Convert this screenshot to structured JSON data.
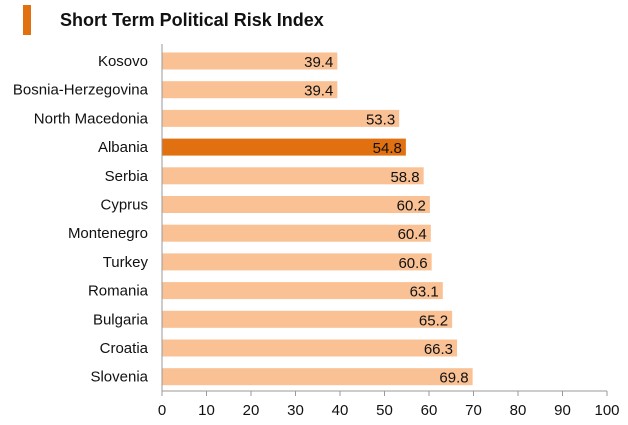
{
  "chart_data": {
    "type": "bar",
    "orientation": "horizontal",
    "title": "Short Term Political Risk Index",
    "categories": [
      "Kosovo",
      "Bosnia-Herzegovina",
      "North Macedonia",
      "Albania",
      "Serbia",
      "Cyprus",
      "Montenegro",
      "Turkey",
      "Romania",
      "Bulgaria",
      "Croatia",
      "Slovenia"
    ],
    "values": [
      39.4,
      39.4,
      53.3,
      54.8,
      58.8,
      60.2,
      60.4,
      60.6,
      63.1,
      65.2,
      66.3,
      69.8
    ],
    "value_labels": [
      "39.4",
      "39.4",
      "53.3",
      "54.8",
      "58.8",
      "60.2",
      "60.4",
      "60.6",
      "63.1",
      "65.2",
      "66.3",
      "69.8"
    ],
    "highlight_category": "Albania",
    "xlim": [
      0,
      100
    ],
    "xticks": [
      "0",
      "10",
      "20",
      "30",
      "40",
      "50",
      "60",
      "70",
      "80",
      "90",
      "100"
    ],
    "xlabel": "",
    "ylabel": "",
    "grid": false,
    "legend": "none"
  },
  "colors": {
    "bar": "#f9c194",
    "highlight": "#e07010",
    "axis": "#999999",
    "title_marker": "#e07010"
  }
}
